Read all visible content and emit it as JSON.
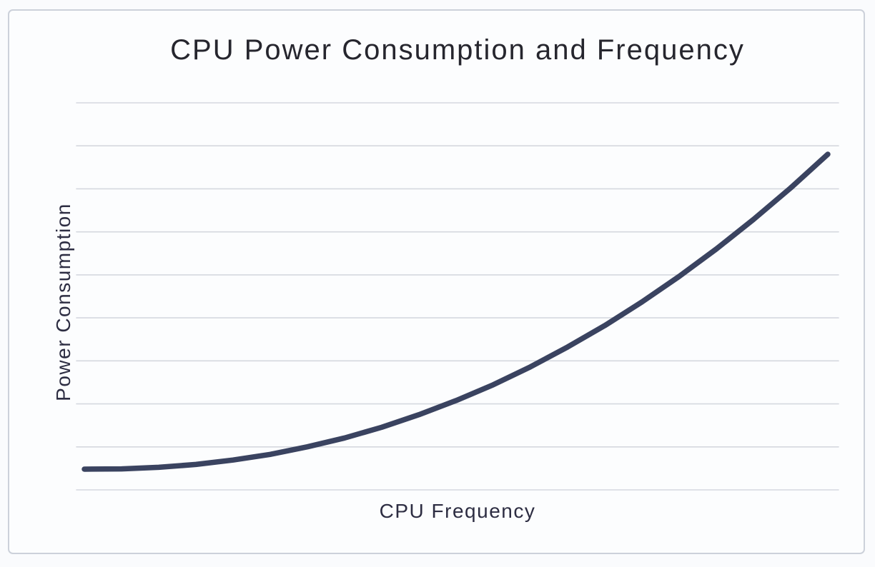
{
  "chart_data": {
    "type": "line",
    "title": "CPU Power Consumption and Frequency",
    "xlabel": "CPU Frequency",
    "ylabel": "Power Consumption",
    "x_tick_labels": [],
    "y_tick_labels": [],
    "axes_numeric_labels_visible": false,
    "legend": "none",
    "grid": "horizontal-only",
    "gridline_count": 10,
    "x_range_relative": [
      0,
      1
    ],
    "y_range_relative": [
      0,
      1
    ],
    "series": [
      {
        "name": "power-vs-frequency",
        "x": [
          0,
          0.05,
          0.1,
          0.15,
          0.2,
          0.25,
          0.3,
          0.35,
          0.4,
          0.45,
          0.5,
          0.55,
          0.6,
          0.65,
          0.7,
          0.75,
          0.8,
          0.85,
          0.9,
          0.95,
          1.0
        ],
        "y": [
          0,
          0.001,
          0.006,
          0.015,
          0.029,
          0.047,
          0.071,
          0.099,
          0.133,
          0.173,
          0.218,
          0.268,
          0.325,
          0.388,
          0.456,
          0.531,
          0.612,
          0.699,
          0.793,
          0.893,
          1.0
        ],
        "shape_note": "power rises superlinearly (~frequency^2.2), flat near origin"
      }
    ]
  },
  "colors": {
    "line": "#3a4360",
    "grid": "#d5d8df",
    "title_text": "#26262e",
    "axis_text": "#2d2d42",
    "frame_border": "#ccd1da",
    "panel_background": "#fcfdfe",
    "page_background": "#fafbfd"
  }
}
